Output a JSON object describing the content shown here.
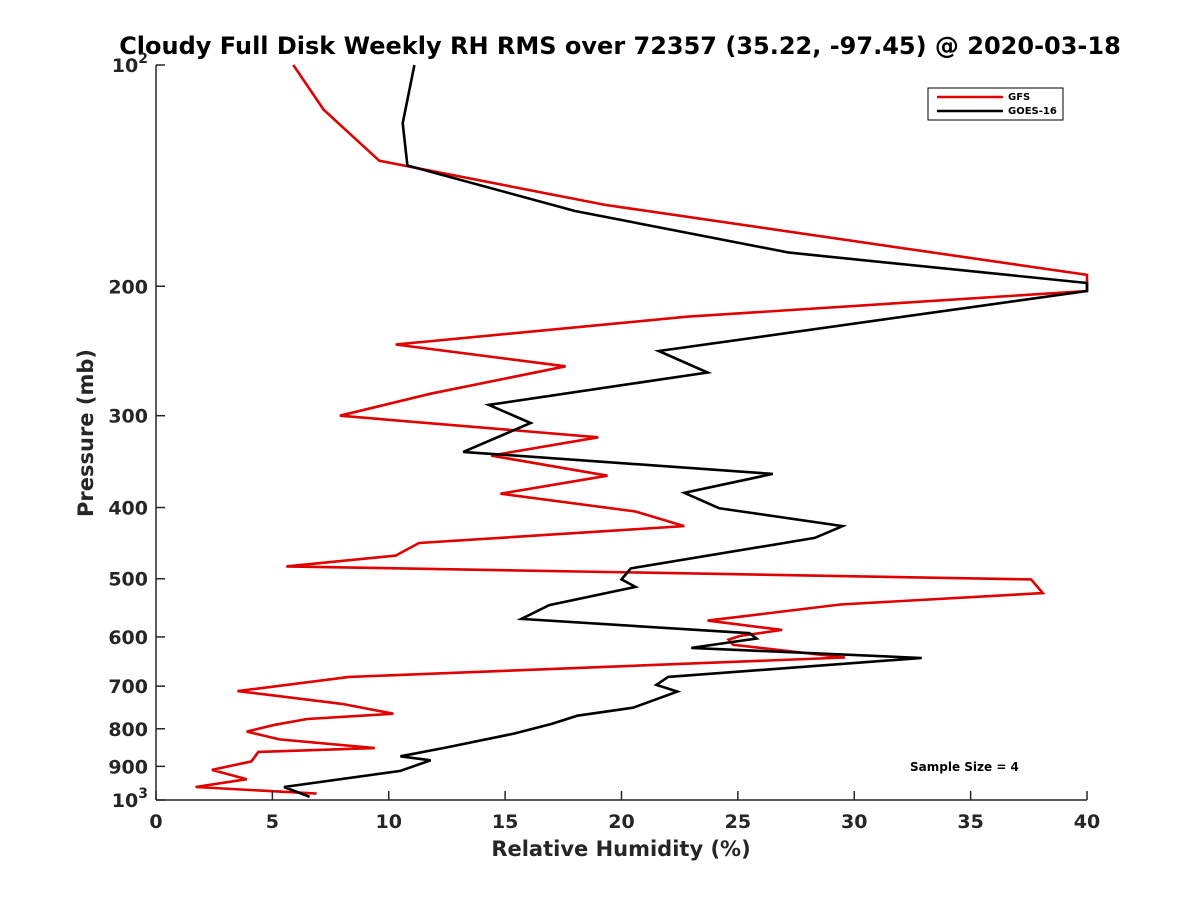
{
  "chart_data": {
    "type": "line",
    "title": "Cloudy Full Disk Weekly RH RMS over 72357 (35.22, -97.45) @ 2020-03-18",
    "xlabel": "Relative Humidity (%)",
    "ylabel": "Pressure (mb)",
    "xlim": [
      0,
      40
    ],
    "ylim": [
      100,
      1000
    ],
    "yscale": "log",
    "y_reversed": true,
    "grid": false,
    "legend_placement": "top-right",
    "x_ticks": [
      "0",
      "5",
      "10",
      "15",
      "20",
      "25",
      "30",
      "35",
      "40"
    ],
    "y_ticks": [
      {
        "value": 100,
        "base": "10",
        "exp": "2"
      },
      {
        "value": 200,
        "label": "200"
      },
      {
        "value": 300,
        "label": "300"
      },
      {
        "value": 400,
        "label": "400"
      },
      {
        "value": 500,
        "label": "500"
      },
      {
        "value": 600,
        "label": "600"
      },
      {
        "value": 700,
        "label": "700"
      },
      {
        "value": 800,
        "label": "800"
      },
      {
        "value": 900,
        "label": "900"
      },
      {
        "value": 1000,
        "base": "10",
        "exp": "3"
      }
    ],
    "annotation": "Sample Size = 4",
    "series": [
      {
        "name": "GFS",
        "color": "#e00000",
        "points": [
          [
            5.9,
            100
          ],
          [
            7.2,
            115
          ],
          [
            8.2,
            123
          ],
          [
            9.6,
            135
          ],
          [
            19.3,
            155
          ],
          [
            40,
            193
          ],
          [
            40,
            203
          ],
          [
            22.8,
            220
          ],
          [
            10.3,
            240
          ],
          [
            17.6,
            257
          ],
          [
            11.8,
            280
          ],
          [
            7.9,
            300
          ],
          [
            19.0,
            321
          ],
          [
            14.4,
            340
          ],
          [
            19.4,
            362
          ],
          [
            14.8,
            383
          ],
          [
            20.6,
            405
          ],
          [
            22.7,
            424
          ],
          [
            11.3,
            447
          ],
          [
            10.3,
            465
          ],
          [
            5.6,
            481
          ],
          [
            37.6,
            501
          ],
          [
            38.1,
            523
          ],
          [
            29.4,
            542
          ],
          [
            23.7,
            570
          ],
          [
            26.9,
            587
          ],
          [
            25.1,
            598
          ],
          [
            24.6,
            605
          ],
          [
            24.8,
            615
          ],
          [
            29.6,
            640
          ],
          [
            8.3,
            680
          ],
          [
            3.5,
            711
          ],
          [
            8.0,
            740
          ],
          [
            10.2,
            763
          ],
          [
            6.5,
            776
          ],
          [
            5.1,
            790
          ],
          [
            3.9,
            807
          ],
          [
            5.3,
            827
          ],
          [
            9.4,
            850
          ],
          [
            4.4,
            860
          ],
          [
            4.1,
            886
          ],
          [
            2.4,
            910
          ],
          [
            3.9,
            937
          ],
          [
            1.7,
            960
          ],
          [
            6.9,
            980
          ]
        ]
      },
      {
        "name": "GOES-16",
        "color": "#000000",
        "points": [
          [
            11.1,
            100
          ],
          [
            10.6,
            120
          ],
          [
            10.8,
            137
          ],
          [
            18.0,
            158
          ],
          [
            27.2,
            180
          ],
          [
            40,
            198
          ],
          [
            40,
            203
          ],
          [
            21.6,
            245
          ],
          [
            23.7,
            262
          ],
          [
            14.3,
            290
          ],
          [
            16.1,
            307
          ],
          [
            13.2,
            336
          ],
          [
            26.5,
            360
          ],
          [
            22.7,
            382
          ],
          [
            24.2,
            401
          ],
          [
            29.5,
            424
          ],
          [
            28.3,
            440
          ],
          [
            20.4,
            484
          ],
          [
            20.0,
            501
          ],
          [
            20.6,
            513
          ],
          [
            16.9,
            543
          ],
          [
            15.7,
            567
          ],
          [
            25.5,
            593
          ],
          [
            25.8,
            603
          ],
          [
            23.0,
            621
          ],
          [
            32.9,
            641
          ],
          [
            22.0,
            680
          ],
          [
            21.5,
            697
          ],
          [
            22.4,
            712
          ],
          [
            20.5,
            749
          ],
          [
            18.1,
            768
          ],
          [
            17.0,
            788
          ],
          [
            15.4,
            812
          ],
          [
            12.5,
            848
          ],
          [
            10.5,
            872
          ],
          [
            11.8,
            883
          ],
          [
            10.5,
            913
          ],
          [
            5.5,
            960
          ],
          [
            6.6,
            990
          ]
        ]
      }
    ]
  }
}
